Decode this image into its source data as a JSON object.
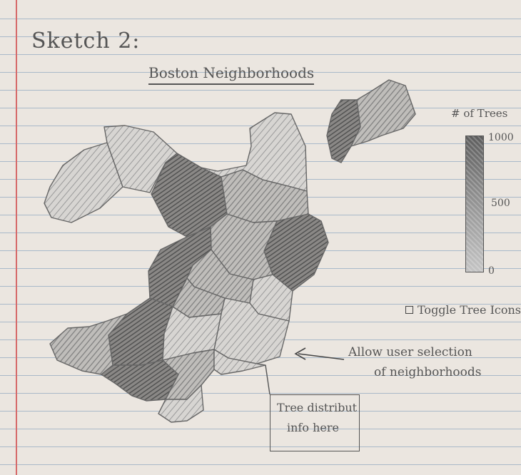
{
  "sketch": {
    "title": "Sketch 2:",
    "map_title": "Boston Neighborhoods"
  },
  "legend": {
    "title": "# of Trees",
    "ticks": [
      "1000",
      "500",
      "0"
    ],
    "max": 1000,
    "min": 0,
    "high_color": "#5d5d5d",
    "low_color": "#c4c4c4"
  },
  "toggle": {
    "label": "Toggle Tree Icons",
    "checked": false
  },
  "annotation": {
    "line1": "Allow user selection",
    "line2": "of neighborhoods"
  },
  "info_box": {
    "line1": "Tree distribut",
    "line2": "info here"
  },
  "neighborhoods": [
    {
      "id": "n1",
      "shade": "light"
    },
    {
      "id": "n2",
      "shade": "light"
    },
    {
      "id": "n3",
      "shade": "dark"
    },
    {
      "id": "n4",
      "shade": "light"
    },
    {
      "id": "n5",
      "shade": "medium"
    },
    {
      "id": "n6",
      "shade": "dark"
    },
    {
      "id": "n7",
      "shade": "medium"
    },
    {
      "id": "n8",
      "shade": "dark"
    },
    {
      "id": "n9",
      "shade": "medium"
    },
    {
      "id": "n10",
      "shade": "light"
    },
    {
      "id": "n11",
      "shade": "medium"
    },
    {
      "id": "n12",
      "shade": "light"
    },
    {
      "id": "n13",
      "shade": "dark"
    },
    {
      "id": "n14",
      "shade": "light"
    },
    {
      "id": "n15",
      "shade": "medium"
    },
    {
      "id": "n16",
      "shade": "dark"
    },
    {
      "id": "n17",
      "shade": "medium"
    },
    {
      "id": "n18",
      "shade": "light"
    },
    {
      "id": "n19",
      "shade": "light"
    },
    {
      "id": "n20",
      "shade": "dark"
    },
    {
      "id": "n21",
      "shade": "medium"
    }
  ]
}
